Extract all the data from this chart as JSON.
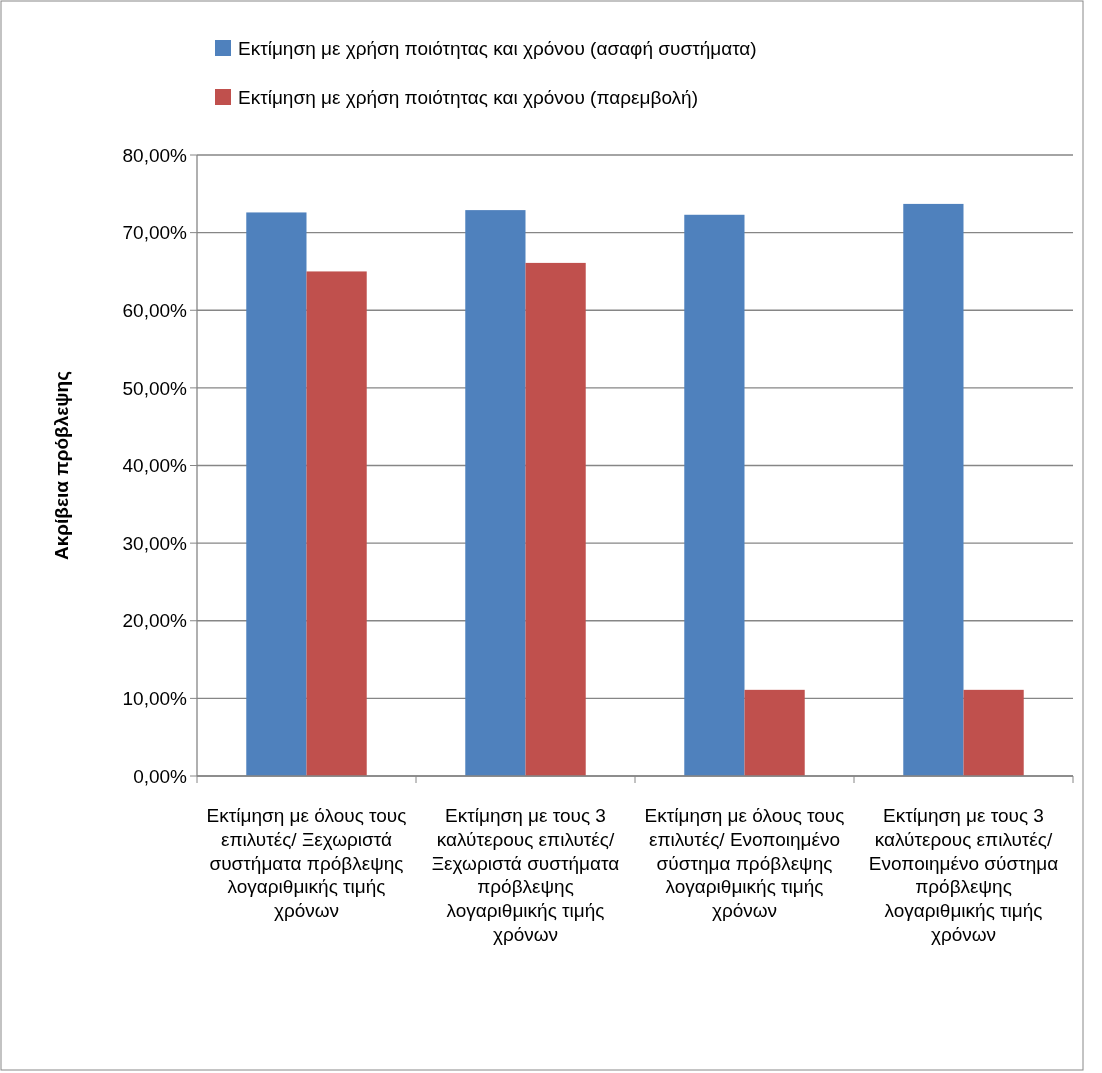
{
  "chart_data": {
    "type": "bar",
    "ylabel": "Ακρίβεια πρόβλεψης",
    "categories": [
      "Εκτίμηση με όλους τους επιλυτές/ Ξεχωριστά συστήματα πρόβλεψης λογαριθμικής τιμής χρόνων",
      "Εκτίμηση με τους 3 καλύτερους επιλυτές/ Ξεχωριστά συστήματα πρόβλεψης λογαριθμικής τιμής χρόνων",
      "Εκτίμηση με όλους τους επιλυτές/ Ενοποιημένο σύστημα πρόβλεψης λογαριθμικής τιμής χρόνων",
      "Εκτίμηση με τους 3 καλύτερους επιλυτές/ Ενοποιημένο σύστημα πρόβλεψης λογαριθμικής τιμής χρόνων"
    ],
    "series": [
      {
        "name": "Εκτίμηση με χρήση ποιότητας και χρόνου (ασαφή συστήματα)",
        "color": "#4f81bd",
        "values": [
          72.6,
          72.9,
          72.3,
          73.7
        ]
      },
      {
        "name": "Εκτίμηση με χρήση ποιότητας και χρόνου (παρεμβολή)",
        "color": "#c0504d",
        "values": [
          65.0,
          66.1,
          11.1,
          11.1
        ]
      }
    ],
    "ylim": [
      0,
      80
    ],
    "yticks": [
      {
        "value": 0,
        "label": "0,00%"
      },
      {
        "value": 10,
        "label": "10,00%"
      },
      {
        "value": 20,
        "label": "20,00%"
      },
      {
        "value": 30,
        "label": "30,00%"
      },
      {
        "value": 40,
        "label": "40,00%"
      },
      {
        "value": 50,
        "label": "50,00%"
      },
      {
        "value": 60,
        "label": "60,00%"
      },
      {
        "value": 70,
        "label": "70,00%"
      },
      {
        "value": 80,
        "label": "80,00%"
      }
    ],
    "grid": "y",
    "legend": "top"
  }
}
